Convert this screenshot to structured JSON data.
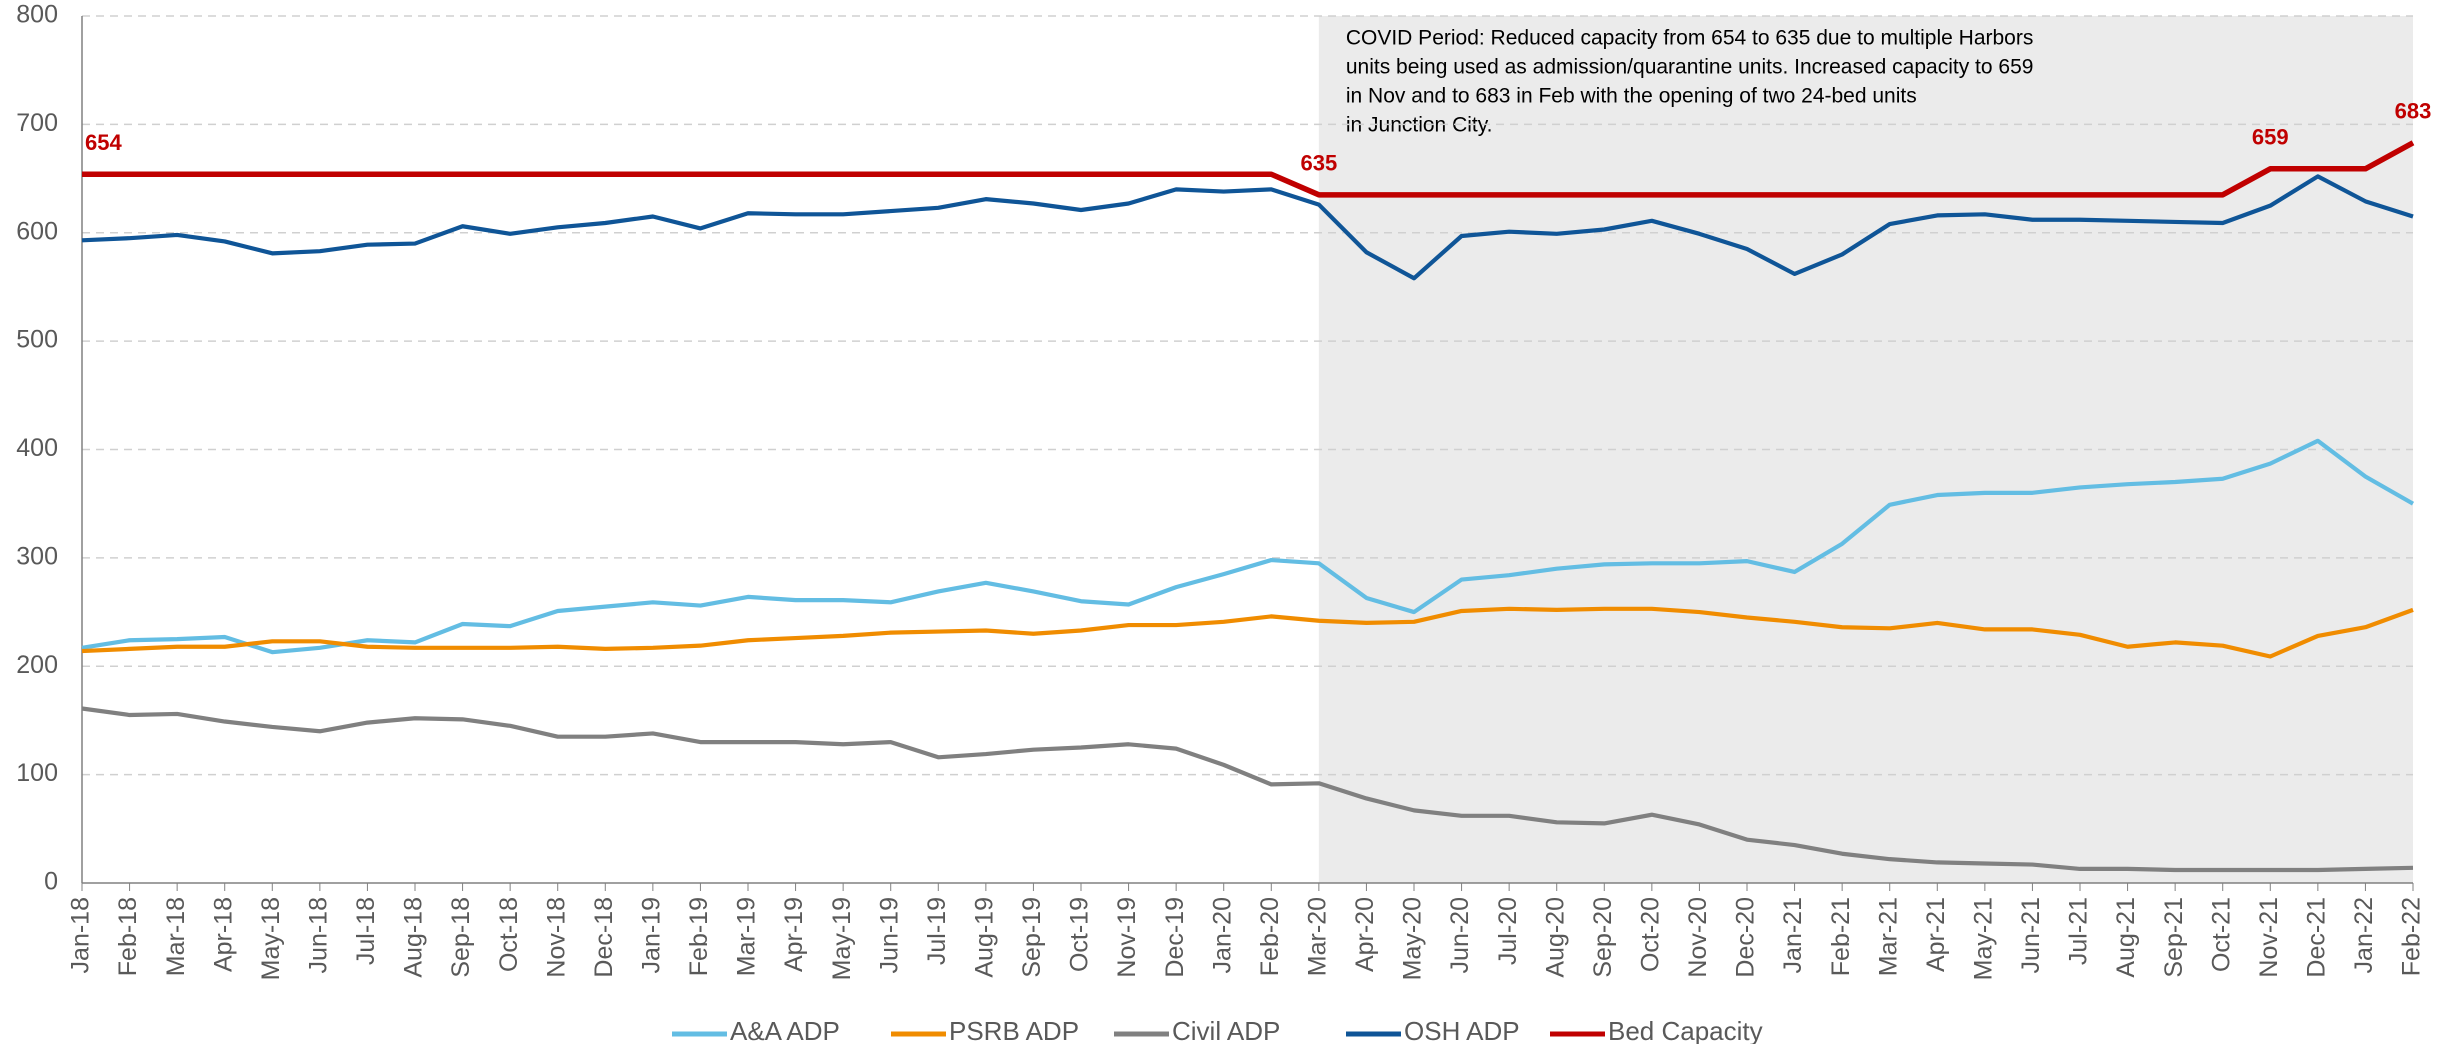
{
  "chart_data": {
    "type": "line",
    "categories": [
      "Jan-18",
      "Feb-18",
      "Mar-18",
      "Apr-18",
      "May-18",
      "Jun-18",
      "Jul-18",
      "Aug-18",
      "Sep-18",
      "Oct-18",
      "Nov-18",
      "Dec-18",
      "Jan-19",
      "Feb-19",
      "Mar-19",
      "Apr-19",
      "May-19",
      "Jun-19",
      "Jul-19",
      "Aug-19",
      "Sep-19",
      "Oct-19",
      "Nov-19",
      "Dec-19",
      "Jan-20",
      "Feb-20",
      "Mar-20",
      "Apr-20",
      "May-20",
      "Jun-20",
      "Jul-20",
      "Aug-20",
      "Sep-20",
      "Oct-20",
      "Nov-20",
      "Dec-20",
      "Jan-21",
      "Feb-21",
      "Mar-21",
      "Apr-21",
      "May-21",
      "Jun-21",
      "Jul-21",
      "Aug-21",
      "Sep-21",
      "Oct-21",
      "Nov-21",
      "Dec-21",
      "Jan-22",
      "Feb-22"
    ],
    "series": [
      {
        "name": "A&A ADP",
        "color": "#63bde3",
        "values": [
          217,
          224,
          225,
          227,
          213,
          217,
          224,
          222,
          239,
          237,
          251,
          255,
          259,
          256,
          264,
          261,
          261,
          259,
          269,
          277,
          269,
          260,
          257,
          273,
          285,
          298,
          295,
          263,
          250,
          280,
          284,
          290,
          294,
          295,
          295,
          297,
          287,
          313,
          349,
          358,
          360,
          360,
          365,
          368,
          370,
          373,
          387,
          408,
          375,
          350
        ]
      },
      {
        "name": "PSRB ADP",
        "color": "#f08c00",
        "values": [
          214,
          216,
          218,
          218,
          223,
          223,
          218,
          217,
          217,
          217,
          218,
          216,
          217,
          219,
          224,
          226,
          228,
          231,
          232,
          233,
          230,
          233,
          238,
          238,
          241,
          246,
          242,
          240,
          241,
          251,
          253,
          252,
          253,
          253,
          250,
          245,
          241,
          236,
          235,
          240,
          234,
          234,
          229,
          218,
          222,
          219,
          209,
          228,
          236,
          252
        ]
      },
      {
        "name": "Civil ADP",
        "color": "#808080",
        "values": [
          161,
          155,
          156,
          149,
          144,
          140,
          148,
          152,
          151,
          145,
          135,
          135,
          138,
          130,
          130,
          130,
          128,
          130,
          116,
          119,
          123,
          125,
          128,
          124,
          109,
          91,
          92,
          78,
          67,
          62,
          62,
          56,
          55,
          63,
          54,
          40,
          35,
          27,
          22,
          19,
          18,
          17,
          13,
          13,
          12,
          12,
          12,
          12,
          13,
          14
        ]
      },
      {
        "name": "OSH ADP",
        "color": "#0f5597",
        "values": [
          593,
          595,
          598,
          592,
          581,
          583,
          589,
          590,
          606,
          599,
          605,
          609,
          615,
          604,
          618,
          617,
          617,
          620,
          623,
          631,
          627,
          621,
          627,
          640,
          638,
          640,
          626,
          582,
          558,
          597,
          601,
          599,
          603,
          611,
          599,
          585,
          562,
          580,
          608,
          616,
          617,
          612,
          612,
          611,
          610,
          609,
          625,
          652,
          629,
          615
        ]
      },
      {
        "name": "Bed Capacity",
        "color": "#c00000",
        "values": [
          654,
          654,
          654,
          654,
          654,
          654,
          654,
          654,
          654,
          654,
          654,
          654,
          654,
          654,
          654,
          654,
          654,
          654,
          654,
          654,
          654,
          654,
          654,
          654,
          654,
          654,
          635,
          635,
          635,
          635,
          635,
          635,
          635,
          635,
          635,
          635,
          635,
          635,
          635,
          635,
          635,
          635,
          635,
          635,
          635,
          635,
          659,
          659,
          659,
          683
        ]
      }
    ],
    "shaded_region": {
      "from": "Mar-20",
      "to": "Feb-22",
      "color": "#ebebeb",
      "label": [
        "COVID Period: Reduced capacity from 654 to 635 due to multiple Harbors",
        "units being used as admission/quarantine units. Increased capacity to 659",
        "in Nov and to 683 in Feb with the opening of two 24-bed units",
        "in Junction City."
      ]
    },
    "ylim": [
      0,
      800
    ],
    "yticks": [
      0,
      100,
      200,
      300,
      400,
      500,
      600,
      700,
      800
    ],
    "grid": true
  }
}
